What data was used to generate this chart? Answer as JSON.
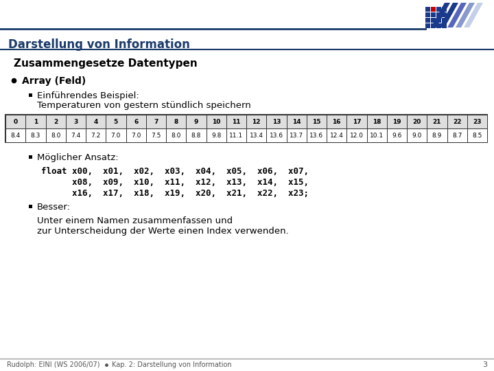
{
  "title": "Darstellung von Information",
  "title_color": "#1a3a6b",
  "bg_color": "#ffffff",
  "header_line_color": "#1a3a6b",
  "h1": "Zusammengesetze Datentypen",
  "bullet1": "Array (Feld)",
  "sub1_line1": "Einführendes Beispiel:",
  "sub1_line2": "Temperaturen von gestern stündlich speichern",
  "table_indices": [
    0,
    1,
    2,
    3,
    4,
    5,
    6,
    7,
    8,
    9,
    10,
    11,
    12,
    13,
    14,
    15,
    16,
    17,
    18,
    19,
    20,
    21,
    22,
    23
  ],
  "table_values": [
    "8.4",
    "8.3",
    "8.0",
    "7.4",
    "7.2",
    "7.0",
    "7.0",
    "7.5",
    "8.0",
    "8.8",
    "9.8",
    "11.1",
    "13.4",
    "13.6",
    "13.7",
    "13.6",
    "12.4",
    "12.0",
    "10.1",
    "9.6",
    "9.0",
    "8.9",
    "8.7",
    "8.5"
  ],
  "sub2": "Möglicher Ansatz:",
  "code_line1": "float x00,  x01,  x02,  x03,  x04,  x05,  x06,  x07,",
  "code_line2": "      x08,  x09,  x10,  x11,  x12,  x13,  x14,  x15,",
  "code_line3": "      x16,  x17,  x18,  x19,  x20,  x21,  x22,  x23;",
  "sub3": "Besser:",
  "better_line1": "Unter einem Namen zusammenfassen und",
  "better_line2": "zur Unterscheidung der Werte einen Index verwenden.",
  "footer_left": "Rudolph: EINI (WS 2006/07)",
  "footer_bullet": "●",
  "footer_right_text": "Kap. 2: Darstellung von Information",
  "page_num": "3",
  "table_border_color": "#333333",
  "header_bg": "#ffffff",
  "logo_blue": "#1a3a8c",
  "logo_red": "#cc0000",
  "logo_stripe": "#8899cc"
}
